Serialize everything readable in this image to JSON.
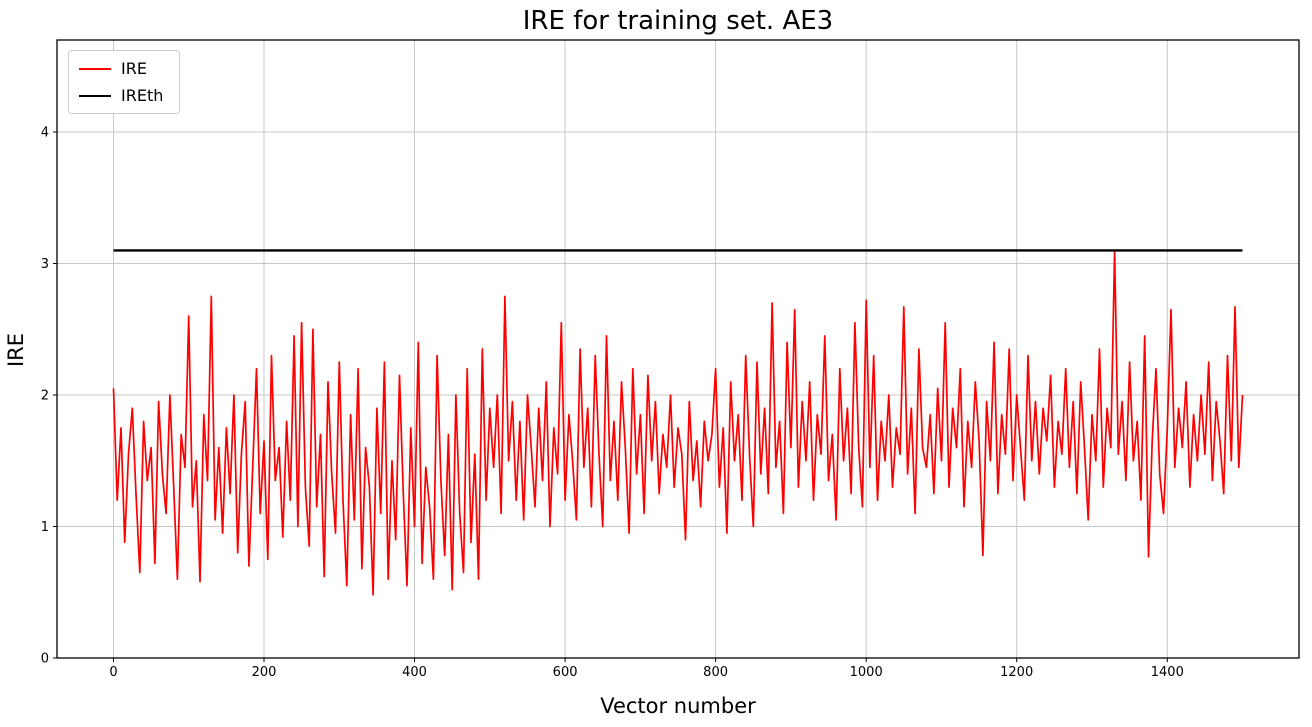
{
  "chart_data": {
    "type": "line",
    "title": "IRE for training set. AE3",
    "xlabel": "Vector number",
    "ylabel": "IRE",
    "xlim": [
      -75,
      1575
    ],
    "ylim": [
      0,
      4.7
    ],
    "x_ticks": [
      0,
      200,
      400,
      600,
      800,
      1000,
      1200,
      1400
    ],
    "y_ticks": [
      0,
      1,
      2,
      3,
      4
    ],
    "grid": true,
    "legend_position": "upper-left",
    "series": [
      {
        "name": "IRE",
        "color": "#ff0000",
        "x_start": 0,
        "x_step": 5,
        "values": [
          2.05,
          1.2,
          1.75,
          0.88,
          1.55,
          1.9,
          1.25,
          0.65,
          1.8,
          1.35,
          1.6,
          0.72,
          1.95,
          1.4,
          1.1,
          2.0,
          1.3,
          0.6,
          1.7,
          1.45,
          2.6,
          1.15,
          1.5,
          0.58,
          1.85,
          1.35,
          2.75,
          1.05,
          1.6,
          0.95,
          1.75,
          1.25,
          2.0,
          0.8,
          1.55,
          1.95,
          0.7,
          1.45,
          2.2,
          1.1,
          1.65,
          0.75,
          2.3,
          1.35,
          1.6,
          0.92,
          1.8,
          1.2,
          2.45,
          1.0,
          2.55,
          1.3,
          0.85,
          2.5,
          1.15,
          1.7,
          0.62,
          2.1,
          1.4,
          0.95,
          2.25,
          1.2,
          0.55,
          1.85,
          1.05,
          2.2,
          0.68,
          1.6,
          1.3,
          0.48,
          1.9,
          1.1,
          2.25,
          0.6,
          1.5,
          0.9,
          2.15,
          1.25,
          0.55,
          1.75,
          1.0,
          2.4,
          0.72,
          1.45,
          1.15,
          0.6,
          2.3,
          1.35,
          0.78,
          1.7,
          0.52,
          2.0,
          1.1,
          0.65,
          2.2,
          0.88,
          1.55,
          0.6,
          2.35,
          1.2,
          1.9,
          1.45,
          2.0,
          1.1,
          2.75,
          1.5,
          1.95,
          1.2,
          1.8,
          1.05,
          2.0,
          1.6,
          1.15,
          1.9,
          1.35,
          2.1,
          1.0,
          1.75,
          1.4,
          2.55,
          1.2,
          1.85,
          1.5,
          1.05,
          2.35,
          1.45,
          1.9,
          1.15,
          2.3,
          1.55,
          1.0,
          2.45,
          1.35,
          1.8,
          1.2,
          2.1,
          1.6,
          0.95,
          2.2,
          1.4,
          1.85,
          1.1,
          2.15,
          1.5,
          1.95,
          1.25,
          1.7,
          1.45,
          2.0,
          1.3,
          1.75,
          1.55,
          0.9,
          1.95,
          1.35,
          1.65,
          1.15,
          1.8,
          1.5,
          1.7,
          2.2,
          1.3,
          1.75,
          0.95,
          2.1,
          1.5,
          1.85,
          1.2,
          2.3,
          1.55,
          1.0,
          2.25,
          1.4,
          1.9,
          1.25,
          2.7,
          1.45,
          1.8,
          1.1,
          2.4,
          1.6,
          2.65,
          1.3,
          1.95,
          1.5,
          2.1,
          1.2,
          1.85,
          1.55,
          2.45,
          1.35,
          1.7,
          1.05,
          2.2,
          1.5,
          1.9,
          1.25,
          2.55,
          1.6,
          1.15,
          2.72,
          1.45,
          2.3,
          1.2,
          1.8,
          1.5,
          2.0,
          1.3,
          1.75,
          1.55,
          2.67,
          1.4,
          1.9,
          1.1,
          2.35,
          1.6,
          1.45,
          1.85,
          1.25,
          2.05,
          1.5,
          2.55,
          1.3,
          1.9,
          1.6,
          2.2,
          1.15,
          1.8,
          1.45,
          2.1,
          1.65,
          0.78,
          1.95,
          1.5,
          2.4,
          1.25,
          1.85,
          1.55,
          2.35,
          1.35,
          2.0,
          1.6,
          1.2,
          2.3,
          1.5,
          1.95,
          1.4,
          1.9,
          1.65,
          2.15,
          1.3,
          1.8,
          1.55,
          2.2,
          1.45,
          1.95,
          1.25,
          2.1,
          1.6,
          1.05,
          1.85,
          1.5,
          2.35,
          1.3,
          1.9,
          1.6,
          3.1,
          1.55,
          1.95,
          1.35,
          2.25,
          1.5,
          1.8,
          1.2,
          2.45,
          0.77,
          1.65,
          2.2,
          1.4,
          1.1,
          1.75,
          2.65,
          1.45,
          1.9,
          1.6,
          2.1,
          1.3,
          1.85,
          1.5,
          2.0,
          1.55,
          2.25,
          1.35,
          1.95,
          1.65,
          1.25,
          2.3,
          1.5,
          2.67,
          1.45,
          2.0
        ]
      },
      {
        "name": "IREth",
        "color": "#000000",
        "y": 3.1,
        "x_range": [
          0,
          1500
        ]
      }
    ]
  }
}
